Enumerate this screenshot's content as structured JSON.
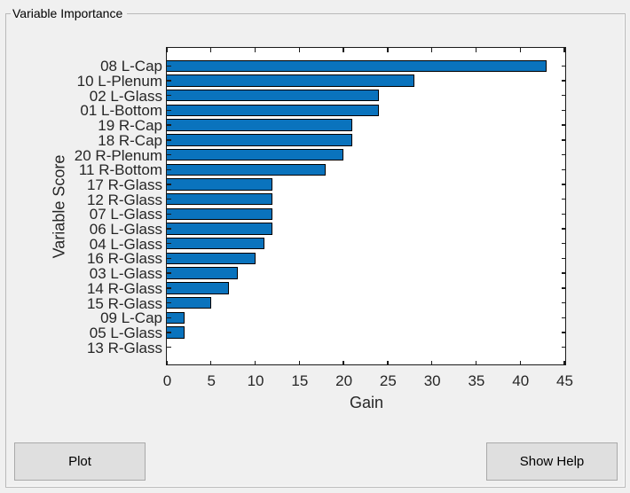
{
  "window": {
    "bg": "#f0f0f0"
  },
  "panel": {
    "title": "Variable Importance"
  },
  "buttons": {
    "plot": "Plot",
    "show_help": "Show Help"
  },
  "chart_data": {
    "type": "bar",
    "orientation": "horizontal",
    "xlabel": "Gain",
    "ylabel": "Variable Score",
    "categories": [
      "08 L-Cap",
      "10 L-Plenum",
      "02 L-Glass",
      "01 L-Bottom",
      "19 R-Cap",
      "18 R-Cap",
      "20 R-Plenum",
      "11 R-Bottom",
      "17 R-Glass",
      "12 R-Glass",
      "07 L-Glass",
      "06 L-Glass",
      "04 L-Glass",
      "16 R-Glass",
      "03 L-Glass",
      "14 R-Glass",
      "15 R-Glass",
      "09 L-Cap",
      "05 L-Glass",
      "13 R-Glass"
    ],
    "values": [
      43,
      28,
      24,
      24,
      21,
      21,
      20,
      18,
      12,
      12,
      12,
      12,
      11,
      10,
      8,
      7,
      5,
      2,
      2,
      0
    ],
    "xlim": [
      0,
      45
    ],
    "xticks": [
      0,
      5,
      10,
      15,
      20,
      25,
      30,
      35,
      40,
      45
    ],
    "grid": false,
    "legend": null,
    "bar_color": "#0a73bd",
    "bar_edge_color": "#000000",
    "axes_bg": "#ffffff",
    "text_color": "#262626"
  }
}
